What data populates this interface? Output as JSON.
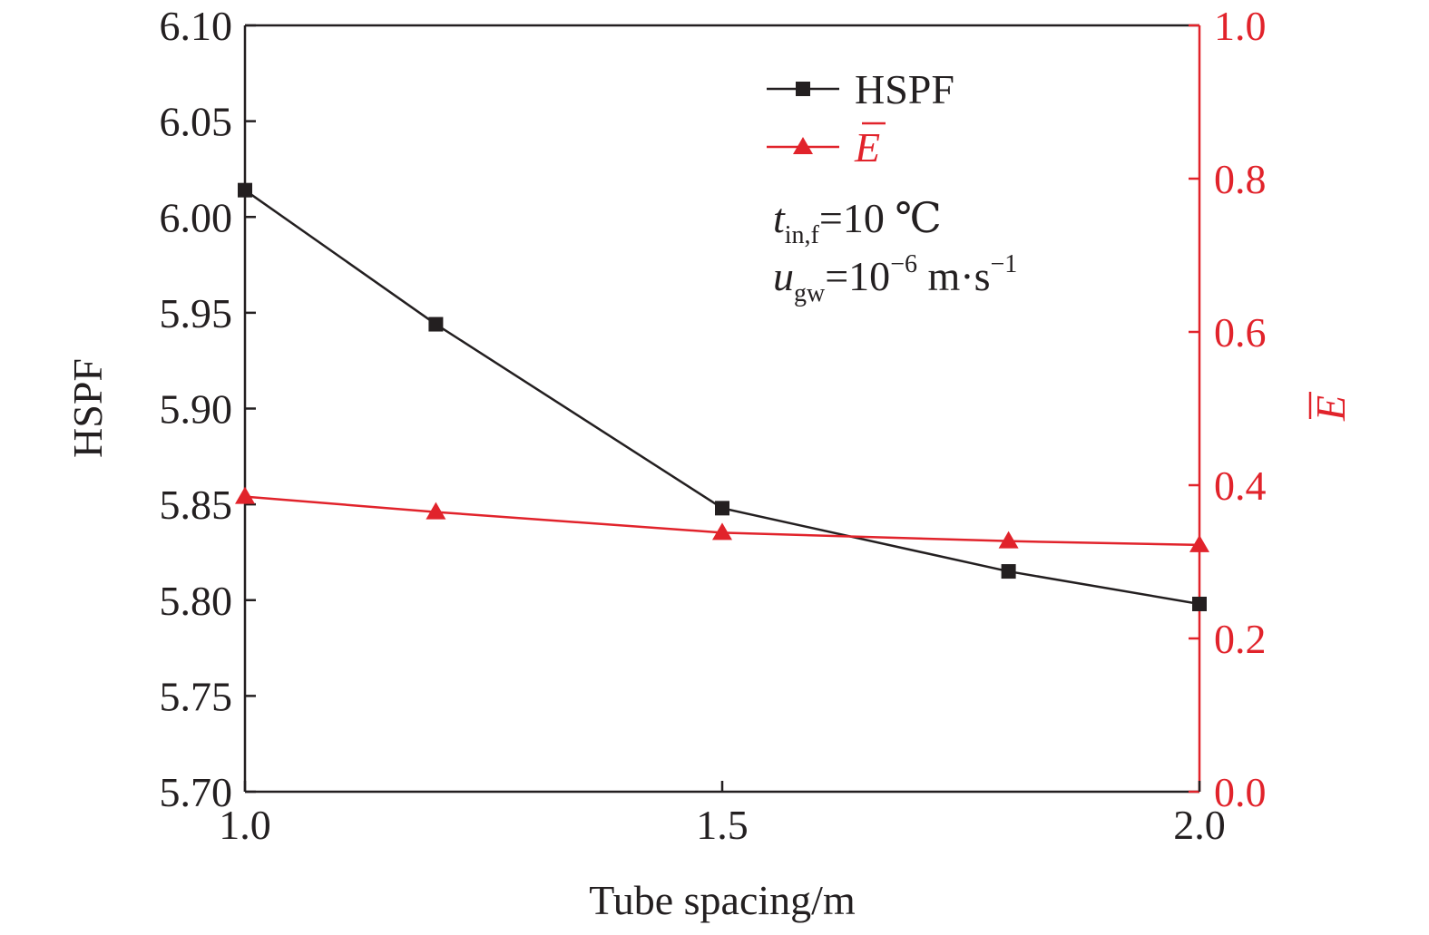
{
  "chart_data": {
    "type": "line",
    "x": [
      1.0,
      1.2,
      1.5,
      1.8,
      2.0
    ],
    "xlabel": "Tube spacing/m",
    "xlim": [
      1.0,
      2.0
    ],
    "xticks": [
      "1.0",
      "1.5",
      "2.0"
    ],
    "ylabel_left": "HSPF",
    "ylim_left": [
      5.7,
      6.1
    ],
    "yticks_left": [
      "5.70",
      "5.75",
      "5.80",
      "5.85",
      "5.90",
      "5.95",
      "6.00",
      "6.05",
      "6.10"
    ],
    "ylabel_right": "E",
    "ylim_right": [
      0.0,
      1.0
    ],
    "yticks_right": [
      "0.0",
      "0.2",
      "0.4",
      "0.6",
      "0.8",
      "1.0"
    ],
    "series": [
      {
        "name": "HSPF",
        "axis": "left",
        "color": "#231f20",
        "marker": "square",
        "values": [
          6.014,
          5.944,
          5.848,
          5.815,
          5.798
        ]
      },
      {
        "name": "E",
        "axis": "right",
        "color": "#e1232b",
        "marker": "triangle",
        "values": [
          0.385,
          0.365,
          0.338,
          0.327,
          0.322
        ]
      }
    ],
    "annotations": {
      "t_symbol": "t",
      "t_sub": "in,f",
      "t_value": "=10 ℃",
      "u_symbol": "u",
      "u_sub": "gw",
      "u_value_base": "=10",
      "u_value_exp": "−6",
      "u_unit": " m·s",
      "u_unit_exp": "−1"
    },
    "legend_position": "top-center",
    "grid": false
  }
}
